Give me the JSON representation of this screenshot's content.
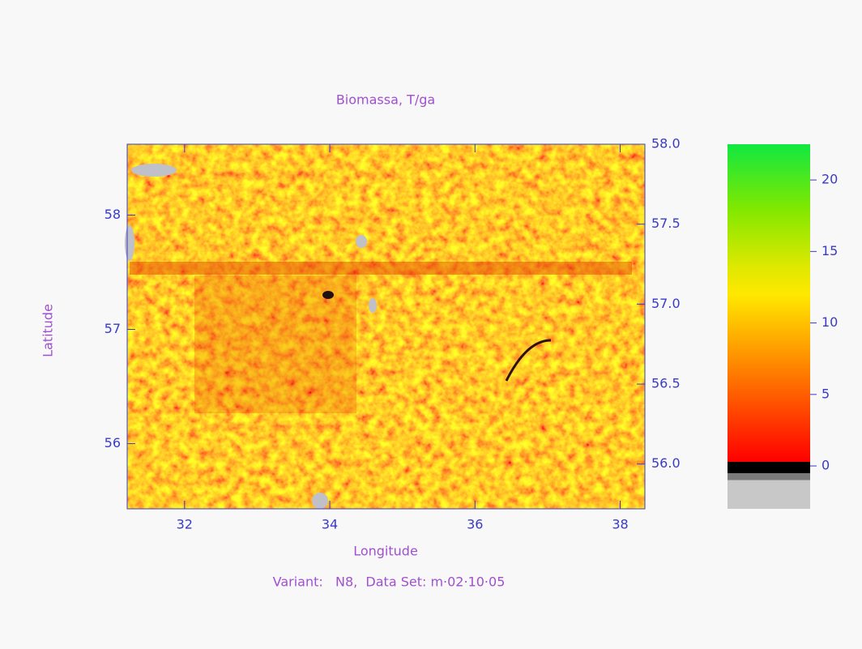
{
  "chart_data": {
    "type": "heatmap",
    "title": "Biomassa, T/ga",
    "x_label": "Longitude",
    "y_label": "Latitude",
    "caption": "Variant:   N8,  Data Set: m·02·10·05",
    "xlim": [
      31.21,
      38.34
    ],
    "xticks": [
      32,
      34,
      36,
      38
    ],
    "ylim": [
      55.43,
      58.62
    ],
    "yticks": [
      56,
      57,
      58
    ],
    "y2lim": [
      55.72,
      58.0
    ],
    "y2ticks": [
      {
        "value": 56,
        "label": "56.0"
      },
      {
        "value": 56.5,
        "label": "56.5"
      },
      {
        "value": 57,
        "label": "57.0"
      },
      {
        "value": 57.5,
        "label": "57.5"
      },
      {
        "value": 58,
        "label": "58.0"
      }
    ],
    "colorbar": {
      "lim": [
        -3,
        22.5
      ],
      "ticks": [
        0,
        5,
        10,
        15,
        20
      ],
      "colorscale": [
        {
          "value": -3,
          "color": "#c8c8c8"
        },
        {
          "value": -1,
          "color": "#c8c8c8"
        },
        {
          "value": -1,
          "color": "#7a7a7a"
        },
        {
          "value": -0.5,
          "color": "#7a7a7a"
        },
        {
          "value": -0.5,
          "color": "#000000"
        },
        {
          "value": 0.3,
          "color": "#000000"
        },
        {
          "value": 0.3,
          "color": "#ff0000"
        },
        {
          "value": 4,
          "color": "#ff4a00"
        },
        {
          "value": 8,
          "color": "#ff9a00"
        },
        {
          "value": 12,
          "color": "#ffe800"
        },
        {
          "value": 14,
          "color": "#dde800"
        },
        {
          "value": 18,
          "color": "#80e800"
        },
        {
          "value": 22.5,
          "color": "#10e840"
        }
      ]
    },
    "axis_color": "#3a3ac8",
    "text_color": "#a050d0"
  }
}
